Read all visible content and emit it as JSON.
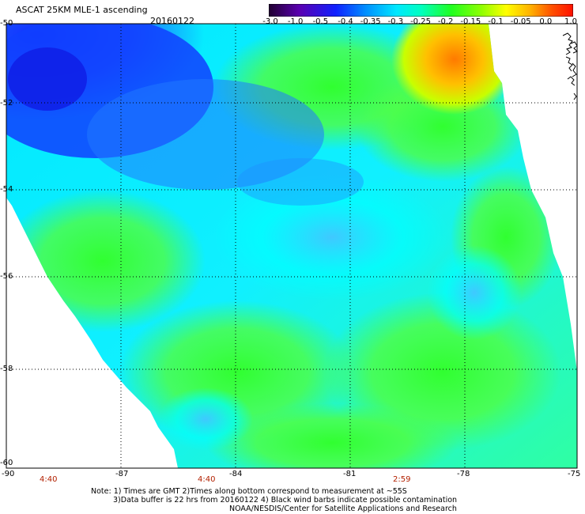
{
  "header": {
    "title": "ASCAT 25KM MLE-1 ascending",
    "date": "20160122"
  },
  "colorbar": {
    "labels": [
      "-3.0",
      "-1.0",
      "-0.5",
      "-0.4",
      "-0.35",
      "-0.3",
      "-0.25",
      "-0.2",
      "-0.15",
      "-0.1",
      "-0.05",
      "0.0",
      "1.0"
    ],
    "colors": [
      "#2a0035",
      "#4a00a0",
      "#1e3cff",
      "#0080ff",
      "#00c8ff",
      "#00ffff",
      "#00ff80",
      "#40ff00",
      "#a0ff00",
      "#ffff00",
      "#ffb000",
      "#ff4000"
    ]
  },
  "map": {
    "lat_labels": [
      "-50",
      "-52",
      "-54",
      "-56",
      "-58",
      "-60"
    ],
    "lon_labels": [
      "-90",
      "-87",
      "-84",
      "-81",
      "-78",
      "-75"
    ],
    "pass_times": [
      "4:40",
      "4:40",
      "2:59"
    ]
  },
  "notes": {
    "line1": "Note: 1) Times are GMT 2)Times along bottom correspond to measurement at ~55S",
    "line2": "3)Data buffer is 22 hrs from 20160122 4) Black wind barbs indicate possible contamination",
    "line3": "NOAA/NESDIS/Center for Satellite Applications and Research"
  }
}
